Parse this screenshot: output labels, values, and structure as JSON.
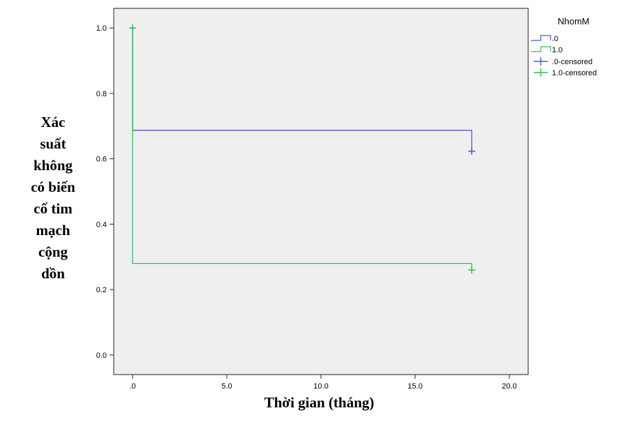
{
  "chart_data": {
    "type": "line",
    "subtype": "kaplan-meier step",
    "title": "",
    "xlabel": "Thời gian (tháng)",
    "ylabel_lines": [
      "Xác",
      "suất",
      "không",
      "có biến",
      "cố tim",
      "mạch",
      "cộng",
      "dồn"
    ],
    "xlim": [
      -1.0,
      21.0
    ],
    "ylim": [
      -0.06,
      1.06
    ],
    "xticks": [
      0,
      5,
      10,
      15,
      20
    ],
    "xtick_labels": [
      ".0",
      "5.0",
      "10.0",
      "15.0",
      "20.0"
    ],
    "yticks": [
      0,
      0.2,
      0.4,
      0.6,
      0.8,
      1.0
    ],
    "ytick_labels": [
      "0.0",
      "0.2",
      "0.4",
      "0.6",
      "0.8",
      "1.0"
    ],
    "grid": false,
    "plot_background": "#efefef",
    "legend": {
      "title": "NhomM",
      "position": "right",
      "entries": [
        ".0",
        "1.0",
        ".0-censored",
        "1.0-censored"
      ]
    },
    "series": [
      {
        "name": ".0",
        "color": "#4a5cc8",
        "steps": [
          [
            0,
            1.0
          ],
          [
            0,
            0.687
          ],
          [
            18,
            0.687
          ],
          [
            18,
            0.623
          ]
        ],
        "censored": [
          [
            18,
            0.623
          ]
        ]
      },
      {
        "name": "1.0",
        "color": "#33bb55",
        "steps": [
          [
            0,
            1.0
          ],
          [
            0,
            0.28
          ],
          [
            18,
            0.28
          ],
          [
            18,
            0.26
          ]
        ],
        "censored": [
          [
            0,
            1.0
          ],
          [
            18,
            0.26
          ]
        ]
      }
    ]
  }
}
